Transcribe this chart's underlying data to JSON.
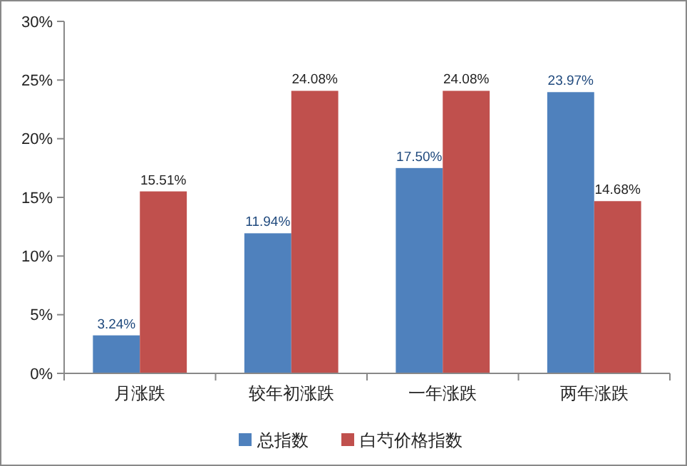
{
  "chart_data": {
    "type": "bar",
    "categories": [
      "月涨跌",
      "较年初涨跌",
      "一年涨跌",
      "两年涨跌"
    ],
    "series": [
      {
        "name": "总指数",
        "color": "#4f81bd",
        "values": [
          3.24,
          11.94,
          17.5,
          23.97
        ],
        "value_labels": [
          "3.24%",
          "11.94%",
          "17.50%",
          "23.97%"
        ]
      },
      {
        "name": "白芍价格指数",
        "color": "#c0504d",
        "values": [
          15.51,
          24.08,
          24.08,
          14.68
        ],
        "value_labels": [
          "15.51%",
          "24.08%",
          "24.08%",
          "14.68%"
        ]
      }
    ],
    "ylim": [
      0,
      30
    ],
    "yticks": [
      {
        "value": 0,
        "label": "0%"
      },
      {
        "value": 5,
        "label": "5%"
      },
      {
        "value": 10,
        "label": "10%"
      },
      {
        "value": 15,
        "label": "15%"
      },
      {
        "value": 20,
        "label": "20%"
      },
      {
        "value": 25,
        "label": "25%"
      },
      {
        "value": 30,
        "label": "30%"
      }
    ],
    "grid": false,
    "legend": "bottom"
  }
}
